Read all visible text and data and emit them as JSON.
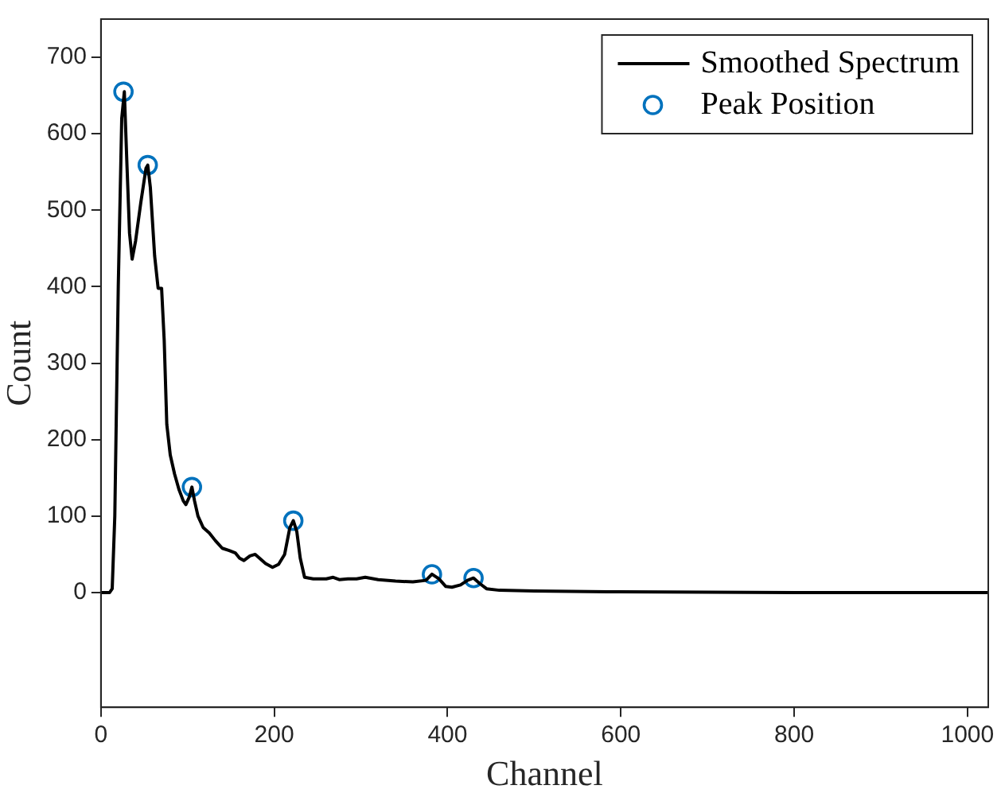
{
  "chart_data": {
    "type": "line",
    "xlabel": "Channel",
    "ylabel": "Count",
    "xlim": [
      0,
      1024
    ],
    "xticks": [
      0,
      200,
      400,
      600,
      800,
      1000
    ],
    "ylim": [
      -150,
      750
    ],
    "yticks": [
      0,
      100,
      200,
      300,
      400,
      500,
      600,
      700
    ],
    "grid": false,
    "legend": "top right",
    "series": [
      {
        "name": "Smoothed Spectrum",
        "color": "#000000",
        "marker": "none",
        "x": [
          0,
          10,
          13,
          16,
          20,
          24,
          27,
          30,
          33,
          36,
          40,
          46,
          52,
          54,
          57,
          62,
          66,
          70,
          73,
          76,
          80,
          85,
          90,
          95,
          98,
          102,
          105,
          108,
          112,
          118,
          125,
          132,
          140,
          148,
          155,
          160,
          165,
          172,
          178,
          183,
          190,
          198,
          205,
          212,
          218,
          222,
          226,
          230,
          235,
          245,
          260,
          268,
          275,
          285,
          295,
          305,
          320,
          340,
          360,
          375,
          382,
          390,
          398,
          405,
          415,
          423,
          430,
          437,
          445,
          460,
          500,
          600,
          800,
          1024
        ],
        "values": [
          0,
          0,
          5,
          100,
          400,
          620,
          655,
          560,
          470,
          436,
          460,
          510,
          555,
          559,
          530,
          440,
          398,
          398,
          330,
          220,
          180,
          155,
          135,
          120,
          115,
          125,
          138,
          120,
          100,
          85,
          78,
          68,
          58,
          55,
          52,
          45,
          42,
          48,
          50,
          45,
          38,
          33,
          37,
          50,
          85,
          94,
          80,
          45,
          20,
          18,
          18,
          20,
          17,
          18,
          18,
          20,
          17,
          15,
          14,
          16,
          24,
          18,
          8,
          7,
          10,
          16,
          19,
          12,
          5,
          3,
          2,
          1,
          0,
          0
        ]
      },
      {
        "name": "Peak Position",
        "type": "scatter",
        "color": "#0072bd",
        "marker": "circle",
        "x": [
          26,
          54,
          105,
          222,
          382,
          430
        ],
        "values": [
          655,
          559,
          138,
          94,
          24,
          19
        ]
      }
    ]
  }
}
